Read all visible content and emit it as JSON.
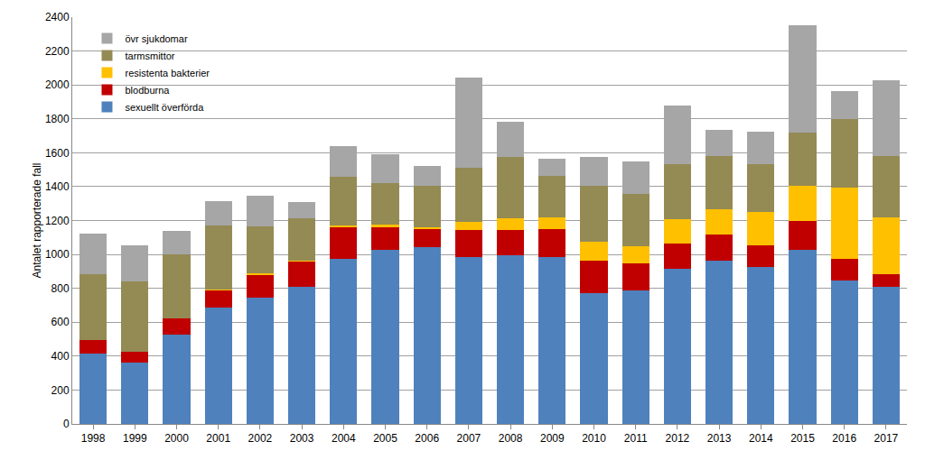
{
  "chart_data": {
    "type": "bar",
    "stacked": true,
    "grid": true,
    "legend": "top-left",
    "y_label": "Antalet rapporterade fall",
    "categories": [
      "1998",
      "1999",
      "2000",
      "2001",
      "2002",
      "2003",
      "2004",
      "2005",
      "2006",
      "2007",
      "2008",
      "2009",
      "2010",
      "2011",
      "2012",
      "2013",
      "2014",
      "2015",
      "2016",
      "2017"
    ],
    "ylim": [
      0,
      2400
    ],
    "yticks": [
      0,
      200,
      400,
      600,
      800,
      1000,
      1200,
      1400,
      1600,
      1800,
      2000,
      2200,
      2400
    ],
    "series": [
      {
        "name": "sexuellt överförda",
        "color": "#4F81BD",
        "values": [
          415,
          360,
          525,
          685,
          745,
          810,
          975,
          1025,
          1045,
          985,
          995,
          985,
          770,
          790,
          915,
          965,
          925,
          1025,
          845,
          810
        ]
      },
      {
        "name": "blodburna",
        "color": "#C00000",
        "values": [
          80,
          65,
          100,
          105,
          135,
          150,
          185,
          135,
          105,
          160,
          150,
          165,
          195,
          155,
          150,
          155,
          130,
          170,
          130,
          75
        ]
      },
      {
        "name": "resistenta bakterier",
        "color": "#FFC000",
        "values": [
          0,
          0,
          0,
          5,
          10,
          5,
          10,
          15,
          10,
          45,
          70,
          70,
          110,
          105,
          145,
          145,
          195,
          210,
          420,
          335
        ]
      },
      {
        "name": "tarmsmittor",
        "color": "#948A54",
        "values": [
          387,
          415,
          375,
          375,
          275,
          250,
          290,
          245,
          245,
          320,
          360,
          245,
          330,
          305,
          320,
          315,
          280,
          315,
          405,
          360
        ]
      },
      {
        "name": "övr sjukdomar",
        "color": "#A6A6A6",
        "values": [
          243,
          215,
          140,
          145,
          180,
          95,
          180,
          170,
          115,
          535,
          210,
          100,
          170,
          195,
          350,
          155,
          195,
          630,
          165,
          445
        ]
      }
    ]
  }
}
